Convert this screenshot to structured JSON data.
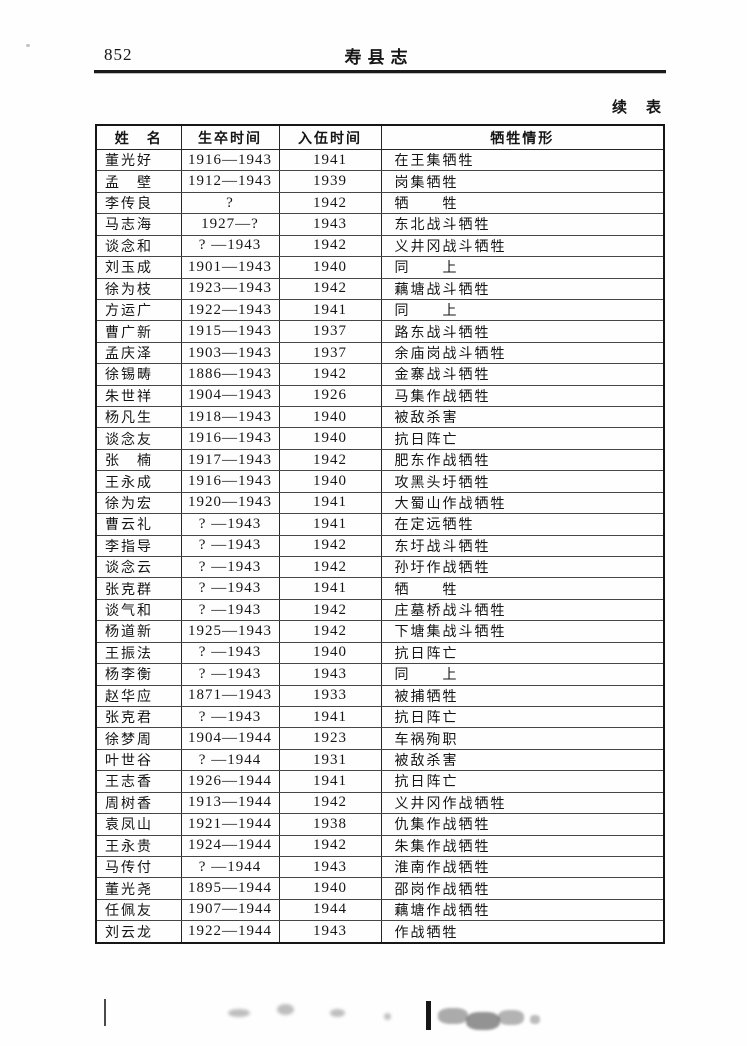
{
  "page": {
    "number": "852",
    "book_title": "寿县志",
    "continued_label": "续　表"
  },
  "table": {
    "headers": [
      "姓　名",
      "生卒时间",
      "入伍时间",
      "牺牲情形"
    ],
    "rows": [
      [
        "董光好",
        "1916—1943",
        "1941",
        "在王集牺牲"
      ],
      [
        "孟　壁",
        "1912—1943",
        "1939",
        "岗集牺牲"
      ],
      [
        "李传良",
        "?",
        "1942",
        "牺　　牲"
      ],
      [
        "马志海",
        "1927—?",
        "1943",
        "东北战斗牺牲"
      ],
      [
        "谈念和",
        "? —1943",
        "1942",
        "义井冈战斗牺牲"
      ],
      [
        "刘玉成",
        "1901—1943",
        "1940",
        "同　　上"
      ],
      [
        "徐为枝",
        "1923—1943",
        "1942",
        "藕塘战斗牺牲"
      ],
      [
        "方运广",
        "1922—1943",
        "1941",
        "同　　上"
      ],
      [
        "曹广新",
        "1915—1943",
        "1937",
        "路东战斗牺牲"
      ],
      [
        "孟庆泽",
        "1903—1943",
        "1937",
        "余庙岗战斗牺牲"
      ],
      [
        "徐锡畴",
        "1886—1943",
        "1942",
        "金寨战斗牺牲"
      ],
      [
        "朱世祥",
        "1904—1943",
        "1926",
        "马集作战牺牲"
      ],
      [
        "杨凡生",
        "1918—1943",
        "1940",
        "被敌杀害"
      ],
      [
        "谈念友",
        "1916—1943",
        "1940",
        "抗日阵亡"
      ],
      [
        "张　楠",
        "1917—1943",
        "1942",
        "肥东作战牺牲"
      ],
      [
        "王永成",
        "1916—1943",
        "1940",
        "攻黑头圩牺牲"
      ],
      [
        "徐为宏",
        "1920—1943",
        "1941",
        "大蜀山作战牺牲"
      ],
      [
        "曹云礼",
        "? —1943",
        "1941",
        "在定远牺牲"
      ],
      [
        "李指导",
        "? —1943",
        "1942",
        "东圩战斗牺牲"
      ],
      [
        "谈念云",
        "? —1943",
        "1942",
        "孙圩作战牺牲"
      ],
      [
        "张克群",
        "? —1943",
        "1941",
        "牺　　牲"
      ],
      [
        "谈气和",
        "? —1943",
        "1942",
        "庄墓桥战斗牺牲"
      ],
      [
        "杨道新",
        "1925—1943",
        "1942",
        "下塘集战斗牺牲"
      ],
      [
        "王振法",
        "? —1943",
        "1940",
        "抗日阵亡"
      ],
      [
        "杨李衡",
        "? —1943",
        "1943",
        "同　　上"
      ],
      [
        "赵华应",
        "1871—1943",
        "1933",
        "被捕牺牲"
      ],
      [
        "张克君",
        "? —1943",
        "1941",
        "抗日阵亡"
      ],
      [
        "徐梦周",
        "1904—1944",
        "1923",
        "车祸殉职"
      ],
      [
        "叶世谷",
        "? —1944",
        "1931",
        "被敌杀害"
      ],
      [
        "王志香",
        "1926—1944",
        "1941",
        "抗日阵亡"
      ],
      [
        "周树香",
        "1913—1944",
        "1942",
        "义井冈作战牺牲"
      ],
      [
        "袁凤山",
        "1921—1944",
        "1938",
        "仇集作战牺牲"
      ],
      [
        "王永贵",
        "1924—1944",
        "1942",
        "朱集作战牺牲"
      ],
      [
        "马传付",
        "? —1944",
        "1943",
        "淮南作战牺牲"
      ],
      [
        "董光尧",
        "1895—1944",
        "1940",
        "邵岗作战牺牲"
      ],
      [
        "任佩友",
        "1907—1944",
        "1944",
        "藕塘作战牺牲"
      ],
      [
        "刘云龙",
        "1922—1944",
        "1943",
        "作战牺牲"
      ]
    ]
  }
}
